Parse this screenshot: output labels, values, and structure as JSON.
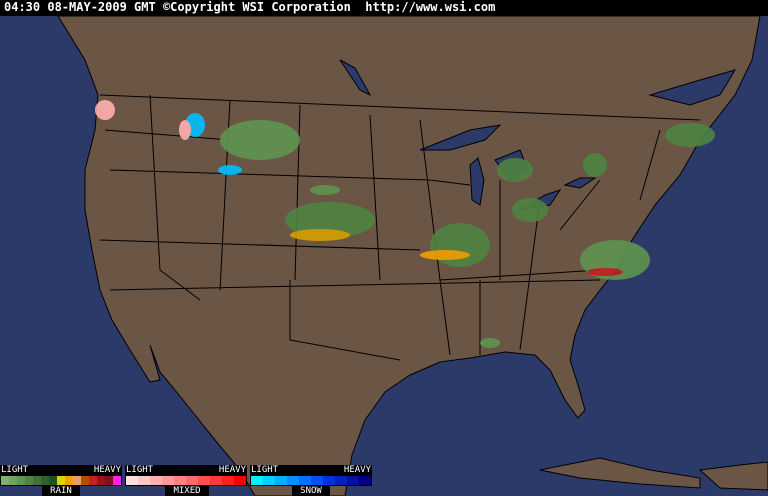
{
  "header": {
    "timestamp": "04:30 08-MAY-2009 GMT",
    "copyright": "©Copyright WSI Corporation",
    "url": "http://www.wsi.com"
  },
  "colors": {
    "ocean": "#2c3a6a",
    "land": "#6b5646",
    "borders": "#000000"
  },
  "legend": [
    {
      "name": "RAIN",
      "light": "LIGHT",
      "heavy": "HEAVY",
      "colors": [
        "#7fb36a",
        "#6fa45c",
        "#5e954f",
        "#4f8442",
        "#3f7336",
        "#2e622a",
        "#1f511f",
        "#d6d600",
        "#f0a000",
        "#e0a070",
        "#b05000",
        "#c82020",
        "#a01010",
        "#801020",
        "#ff20e0"
      ]
    },
    {
      "name": "MIXED",
      "light": "LIGHT",
      "heavy": "HEAVY",
      "colors": [
        "#ffe0e0",
        "#ffc8c8",
        "#ffb0b0",
        "#ff9898",
        "#ff8080",
        "#ff6868",
        "#ff5050",
        "#ff3838",
        "#ff2020",
        "#ff0000"
      ]
    },
    {
      "name": "SNOW",
      "light": "LIGHT",
      "heavy": "HEAVY",
      "colors": [
        "#00f0ff",
        "#00d0ff",
        "#00b0ff",
        "#0090ff",
        "#0070ff",
        "#0050f0",
        "#0030e0",
        "#0020c0",
        "#0010a0",
        "#000080"
      ]
    }
  ]
}
